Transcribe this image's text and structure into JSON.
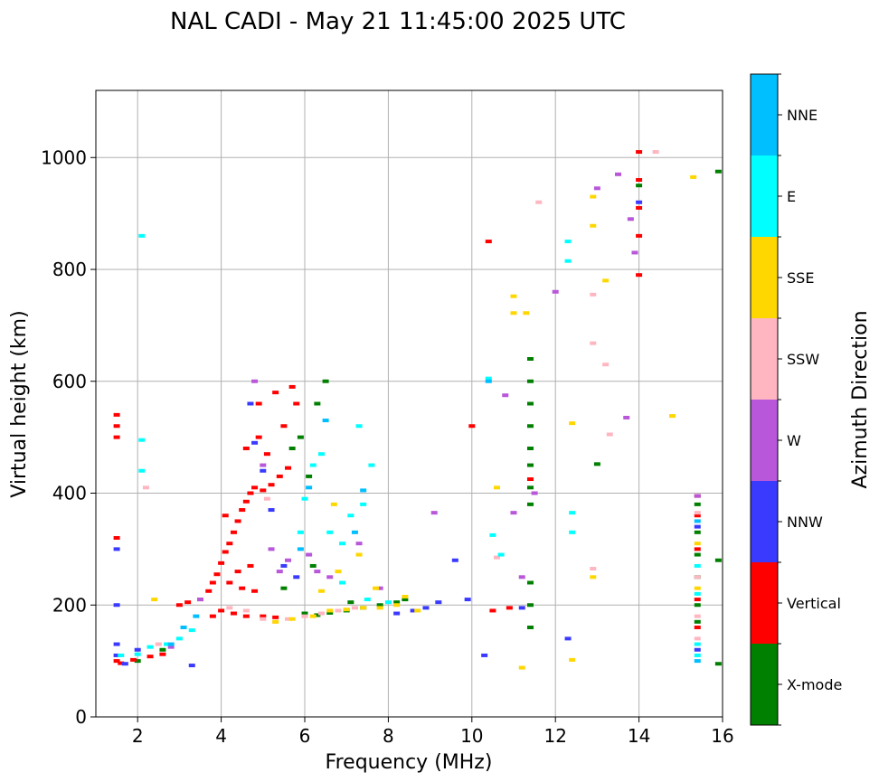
{
  "chart_data": {
    "type": "scatter",
    "title": "NAL CADI - May 21 11:45:00 2025 UTC",
    "xlabel": "Frequency (MHz)",
    "ylabel": "Virtual height (km)",
    "xlim": [
      1,
      16
    ],
    "ylim": [
      0,
      1120
    ],
    "xticks": [
      2,
      4,
      6,
      8,
      10,
      12,
      14,
      16
    ],
    "yticks": [
      0,
      200,
      400,
      600,
      800,
      1000
    ],
    "grid": true,
    "colorbar": {
      "label": "Azimuth Direction",
      "categories": [
        {
          "name": "X-mode",
          "color": "#008000"
        },
        {
          "name": "Vertical",
          "color": "#ff0000"
        },
        {
          "name": "NNW",
          "color": "#3a3aff"
        },
        {
          "name": "W",
          "color": "#b857d9"
        },
        {
          "name": "SSW",
          "color": "#ffb6c1"
        },
        {
          "name": "SSE",
          "color": "#ffd700"
        },
        {
          "name": "E",
          "color": "#00ffff"
        },
        {
          "name": "NNE",
          "color": "#00bfff"
        }
      ]
    },
    "series": [
      {
        "name": "X-mode",
        "points": [
          [
            11.4,
            640
          ],
          [
            11.4,
            600
          ],
          [
            11.4,
            560
          ],
          [
            11.4,
            520
          ],
          [
            11.4,
            480
          ],
          [
            11.4,
            450
          ],
          [
            11.4,
            410
          ],
          [
            11.4,
            380
          ],
          [
            11.4,
            240
          ],
          [
            11.4,
            200
          ],
          [
            11.4,
            160
          ],
          [
            6.0,
            185
          ],
          [
            6.3,
            182
          ],
          [
            6.6,
            186
          ],
          [
            7.0,
            190
          ],
          [
            7.4,
            195
          ],
          [
            7.8,
            200
          ],
          [
            8.2,
            205
          ],
          [
            6.1,
            430
          ],
          [
            6.3,
            560
          ],
          [
            6.5,
            600
          ],
          [
            5.7,
            480
          ],
          [
            13.0,
            452
          ],
          [
            15.4,
            380
          ],
          [
            15.4,
            330
          ],
          [
            15.4,
            290
          ],
          [
            15.4,
            250
          ],
          [
            15.4,
            200
          ],
          [
            15.4,
            170
          ],
          [
            15.9,
            280
          ],
          [
            15.9,
            95
          ],
          [
            15.9,
            975
          ],
          [
            14.0,
            950
          ],
          [
            6.2,
            270
          ],
          [
            5.5,
            230
          ],
          [
            7.1,
            205
          ],
          [
            8.4,
            210
          ],
          [
            5.9,
            500
          ],
          [
            2.0,
            100
          ],
          [
            2.6,
            120
          ]
        ]
      },
      {
        "name": "Vertical",
        "points": [
          [
            1.5,
            100
          ],
          [
            1.6,
            96
          ],
          [
            1.9,
            102
          ],
          [
            2.3,
            108
          ],
          [
            2.6,
            112
          ],
          [
            3.0,
            200
          ],
          [
            3.2,
            205
          ],
          [
            3.5,
            210
          ],
          [
            3.7,
            225
          ],
          [
            3.8,
            240
          ],
          [
            3.9,
            255
          ],
          [
            4.0,
            275
          ],
          [
            4.1,
            295
          ],
          [
            4.2,
            310
          ],
          [
            4.3,
            330
          ],
          [
            4.4,
            350
          ],
          [
            4.5,
            370
          ],
          [
            4.6,
            385
          ],
          [
            4.7,
            400
          ],
          [
            4.8,
            410
          ],
          [
            5.0,
            405
          ],
          [
            5.2,
            415
          ],
          [
            5.4,
            430
          ],
          [
            5.6,
            445
          ],
          [
            4.6,
            480
          ],
          [
            4.9,
            500
          ],
          [
            5.1,
            470
          ],
          [
            5.5,
            520
          ],
          [
            5.8,
            560
          ],
          [
            4.2,
            240
          ],
          [
            4.5,
            230
          ],
          [
            4.8,
            225
          ],
          [
            4.0,
            190
          ],
          [
            4.3,
            185
          ],
          [
            4.6,
            180
          ],
          [
            5.0,
            180
          ],
          [
            5.3,
            178
          ],
          [
            4.4,
            260
          ],
          [
            4.7,
            270
          ],
          [
            3.8,
            180
          ],
          [
            1.5,
            540
          ],
          [
            1.5,
            520
          ],
          [
            1.5,
            500
          ],
          [
            1.5,
            320
          ],
          [
            10.0,
            520
          ],
          [
            10.4,
            850
          ],
          [
            11.4,
            425
          ],
          [
            10.9,
            195
          ],
          [
            10.5,
            190
          ],
          [
            14.0,
            1010
          ],
          [
            14.0,
            960
          ],
          [
            14.0,
            910
          ],
          [
            14.0,
            860
          ],
          [
            14.0,
            790
          ],
          [
            15.4,
            160
          ],
          [
            15.4,
            210
          ],
          [
            15.4,
            300
          ],
          [
            15.4,
            360
          ],
          [
            15.4,
            395
          ],
          [
            4.1,
            360
          ],
          [
            4.9,
            560
          ],
          [
            5.3,
            580
          ],
          [
            5.7,
            590
          ]
        ]
      },
      {
        "name": "NNW",
        "points": [
          [
            1.5,
            130
          ],
          [
            1.5,
            110
          ],
          [
            1.7,
            95
          ],
          [
            3.3,
            92
          ],
          [
            4.7,
            560
          ],
          [
            4.8,
            490
          ],
          [
            5.0,
            440
          ],
          [
            5.2,
            370
          ],
          [
            5.5,
            270
          ],
          [
            5.8,
            250
          ],
          [
            8.2,
            185
          ],
          [
            8.6,
            190
          ],
          [
            8.9,
            195
          ],
          [
            9.2,
            205
          ],
          [
            9.6,
            280
          ],
          [
            9.9,
            210
          ],
          [
            11.2,
            195
          ],
          [
            12.3,
            140
          ],
          [
            14.0,
            920
          ],
          [
            15.4,
            120
          ],
          [
            15.4,
            340
          ],
          [
            10.3,
            110
          ],
          [
            1.5,
            200
          ],
          [
            1.5,
            300
          ],
          [
            2.0,
            120
          ]
        ]
      },
      {
        "name": "W",
        "points": [
          [
            4.8,
            600
          ],
          [
            5.0,
            450
          ],
          [
            5.2,
            300
          ],
          [
            5.4,
            260
          ],
          [
            5.6,
            280
          ],
          [
            6.1,
            290
          ],
          [
            6.3,
            260
          ],
          [
            7.3,
            310
          ],
          [
            7.8,
            230
          ],
          [
            9.1,
            365
          ],
          [
            10.8,
            575
          ],
          [
            11.0,
            365
          ],
          [
            11.2,
            250
          ],
          [
            12.0,
            760
          ],
          [
            13.0,
            945
          ],
          [
            13.5,
            970
          ],
          [
            13.7,
            535
          ],
          [
            13.8,
            890
          ],
          [
            13.9,
            830
          ],
          [
            11.5,
            400
          ],
          [
            15.4,
            395
          ],
          [
            6.6,
            250
          ],
          [
            3.5,
            210
          ],
          [
            2.8,
            125
          ]
        ]
      },
      {
        "name": "SSW",
        "points": [
          [
            4.2,
            195
          ],
          [
            4.6,
            190
          ],
          [
            5.0,
            175
          ],
          [
            5.3,
            170
          ],
          [
            5.6,
            175
          ],
          [
            6.0,
            180
          ],
          [
            6.4,
            185
          ],
          [
            6.8,
            190
          ],
          [
            7.2,
            195
          ],
          [
            10.6,
            285
          ],
          [
            11.6,
            920
          ],
          [
            12.9,
            755
          ],
          [
            12.9,
            668
          ],
          [
            12.9,
            265
          ],
          [
            13.2,
            630
          ],
          [
            13.3,
            505
          ],
          [
            14.4,
            1010
          ],
          [
            15.4,
            140
          ],
          [
            15.4,
            180
          ],
          [
            15.4,
            250
          ],
          [
            15.4,
            365
          ],
          [
            5.1,
            390
          ],
          [
            2.5,
            130
          ],
          [
            2.2,
            410
          ]
        ]
      },
      {
        "name": "SSE",
        "points": [
          [
            5.3,
            170
          ],
          [
            5.7,
            175
          ],
          [
            6.2,
            180
          ],
          [
            6.6,
            190
          ],
          [
            7.0,
            192
          ],
          [
            7.4,
            195
          ],
          [
            7.8,
            195
          ],
          [
            8.2,
            200
          ],
          [
            8.4,
            215
          ],
          [
            8.7,
            190
          ],
          [
            7.7,
            230
          ],
          [
            7.3,
            290
          ],
          [
            6.8,
            260
          ],
          [
            6.4,
            225
          ],
          [
            6.7,
            380
          ],
          [
            2.4,
            210
          ],
          [
            11.0,
            752
          ],
          [
            11.0,
            722
          ],
          [
            11.3,
            722
          ],
          [
            12.4,
            525
          ],
          [
            12.4,
            102
          ],
          [
            12.9,
            930
          ],
          [
            12.9,
            878
          ],
          [
            12.9,
            250
          ],
          [
            13.2,
            780
          ],
          [
            14.8,
            538
          ],
          [
            15.3,
            965
          ],
          [
            11.2,
            88
          ],
          [
            10.6,
            410
          ],
          [
            15.4,
            310
          ],
          [
            15.4,
            230
          ]
        ]
      },
      {
        "name": "E",
        "points": [
          [
            1.6,
            110
          ],
          [
            2.0,
            112
          ],
          [
            2.3,
            125
          ],
          [
            2.7,
            130
          ],
          [
            3.0,
            140
          ],
          [
            3.3,
            155
          ],
          [
            2.1,
            860
          ],
          [
            2.1,
            495
          ],
          [
            2.1,
            440
          ],
          [
            6.2,
            450
          ],
          [
            6.4,
            470
          ],
          [
            6.6,
            330
          ],
          [
            6.9,
            310
          ],
          [
            7.1,
            360
          ],
          [
            7.4,
            380
          ],
          [
            7.6,
            450
          ],
          [
            7.3,
            520
          ],
          [
            6.9,
            240
          ],
          [
            7.5,
            210
          ],
          [
            8.0,
            205
          ],
          [
            10.5,
            325
          ],
          [
            10.4,
            605
          ],
          [
            10.7,
            290
          ],
          [
            12.3,
            850
          ],
          [
            12.3,
            815
          ],
          [
            12.4,
            365
          ],
          [
            12.4,
            330
          ],
          [
            15.4,
            110
          ],
          [
            15.4,
            130
          ],
          [
            15.4,
            220
          ],
          [
            15.4,
            270
          ],
          [
            5.9,
            330
          ],
          [
            6.0,
            390
          ]
        ]
      },
      {
        "name": "NNE",
        "points": [
          [
            3.1,
            160
          ],
          [
            3.4,
            180
          ],
          [
            5.9,
            300
          ],
          [
            6.1,
            410
          ],
          [
            6.5,
            530
          ],
          [
            7.2,
            330
          ],
          [
            10.4,
            600
          ],
          [
            15.4,
            100
          ],
          [
            15.4,
            350
          ],
          [
            2.8,
            130
          ],
          [
            7.4,
            405
          ]
        ]
      }
    ]
  }
}
